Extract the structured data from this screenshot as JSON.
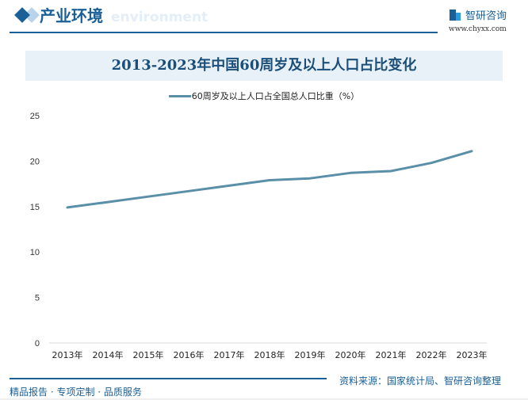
{
  "header": {
    "section_title": "产业环境",
    "section_subtitle": "environment",
    "logo_name": "智研咨询",
    "logo_url": "www.chyxx.com"
  },
  "chart_title": "2013-2023年中国60周岁及以上人口占比变化",
  "legend_label": "60周岁及以上人口占全国总人口比重（%）",
  "footer": {
    "left": "精品报告 · 专项定制 · 品质服务",
    "source": "资料来源：国家统计局、智研咨询整理"
  },
  "colors": {
    "line": "#5a8fa8",
    "brand": "#1a5f96",
    "title_band": "#e9f1f8"
  },
  "chart_data": {
    "type": "line",
    "title": "2013-2023年中国60周岁及以上人口占比变化",
    "xlabel": "",
    "ylabel": "",
    "categories": [
      "2013年",
      "2014年",
      "2015年",
      "2016年",
      "2017年",
      "2018年",
      "2019年",
      "2020年",
      "2021年",
      "2022年",
      "2023年"
    ],
    "series": [
      {
        "name": "60周岁及以上人口占全国总人口比重（%）",
        "values": [
          14.9,
          15.5,
          16.1,
          16.7,
          17.3,
          17.9,
          18.1,
          18.7,
          18.9,
          19.8,
          21.1
        ]
      }
    ],
    "ylim": [
      0,
      25
    ],
    "yticks": [
      0,
      5,
      10,
      15,
      20,
      25
    ],
    "grid": false,
    "legend_position": "top"
  }
}
